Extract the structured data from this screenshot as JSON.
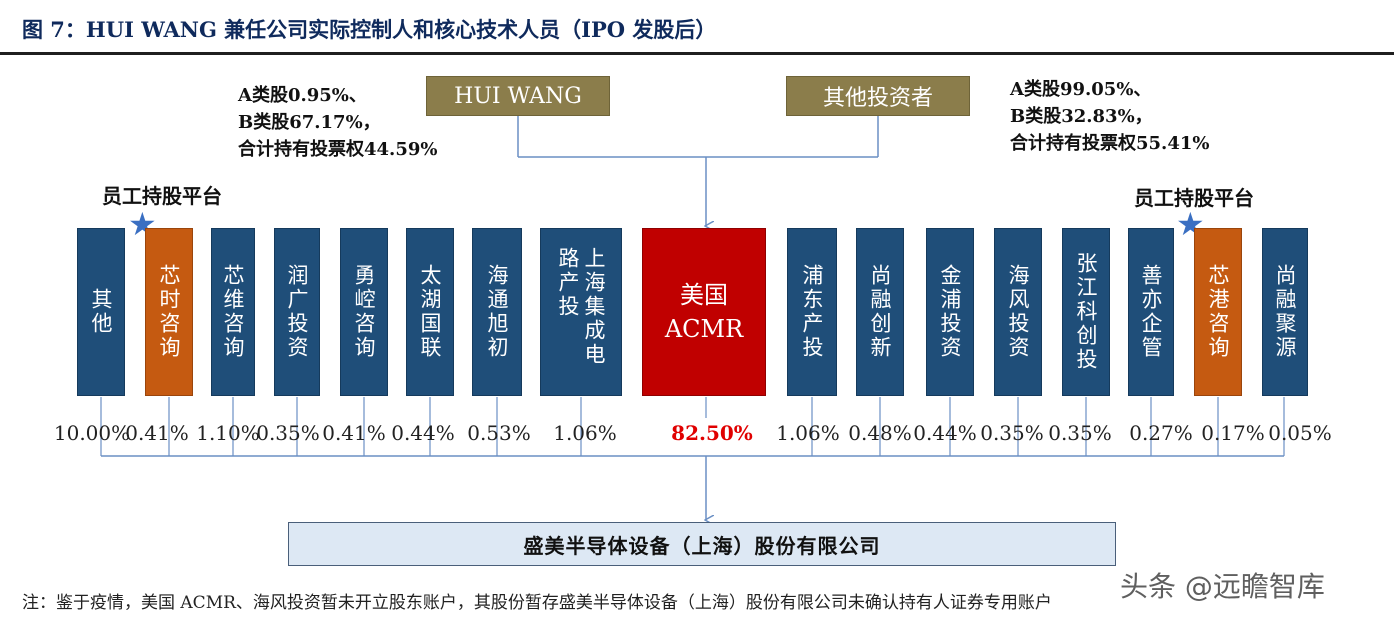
{
  "title": "图 7：HUI WANG 兼任公司实际控制人和核心技术人员（IPO 发股后）",
  "owners": {
    "left": {
      "name": "HUI WANG",
      "note": [
        "A类股0.95%、",
        "B类股67.17%，",
        "合计持有投票权44.59%"
      ]
    },
    "right": {
      "name": "其他投资者",
      "note": [
        "A类股99.05%、",
        "B类股32.83%，",
        "合计持有投票权55.41%"
      ]
    }
  },
  "esop_label": "员工持股平台",
  "shareholders": [
    {
      "name": "其他",
      "pct": "10.00%",
      "color": "blue"
    },
    {
      "name": "芯时咨询",
      "pct": "0.41%",
      "color": "orange",
      "esop": true
    },
    {
      "name": "芯维咨询",
      "pct": "1.10%",
      "color": "blue"
    },
    {
      "name": "润广投资",
      "pct": "0.35%",
      "color": "blue"
    },
    {
      "name": "勇崆咨询",
      "pct": "0.41%",
      "color": "blue"
    },
    {
      "name": "太湖国联",
      "pct": "0.44%",
      "color": "blue"
    },
    {
      "name": "海通旭初",
      "pct": "0.53%",
      "color": "blue"
    },
    {
      "name": "上海集成电路产投",
      "pct": "1.06%",
      "color": "blue"
    },
    {
      "name": "美国ACMR",
      "pct": "82.50%",
      "color": "red"
    },
    {
      "name": "浦东产投",
      "pct": "1.06%",
      "color": "blue"
    },
    {
      "name": "尚融创新",
      "pct": "0.48%",
      "color": "blue"
    },
    {
      "name": "金浦投资",
      "pct": "0.44%",
      "color": "blue"
    },
    {
      "name": "海风投资",
      "pct": "0.35%",
      "color": "blue"
    },
    {
      "name": "张江科创投",
      "pct": "0.35%",
      "color": "blue"
    },
    {
      "name": "善亦企管",
      "pct": "0.27%",
      "color": "blue"
    },
    {
      "name": "芯港咨询",
      "pct": "0.17%",
      "color": "orange",
      "esop": true
    },
    {
      "name": "尚融聚源",
      "pct": "0.05%",
      "color": "blue"
    }
  ],
  "company": "盛美半导体设备（上海）股份有限公司",
  "footnote": "注：鉴于疫情，美国 ACMR、海风投资暂未开立股东账户，其股份暂存盛美半导体设备（上海）股份有限公司未确认持有人证券专用账户",
  "watermark": "头条 @远瞻智库",
  "colors": {
    "blue": "#1f4e79",
    "orange": "#c55a11",
    "red": "#c00000",
    "owner": "#8b7d4b",
    "company_fill": "#dde8f4",
    "line": "#6a8fc4"
  }
}
